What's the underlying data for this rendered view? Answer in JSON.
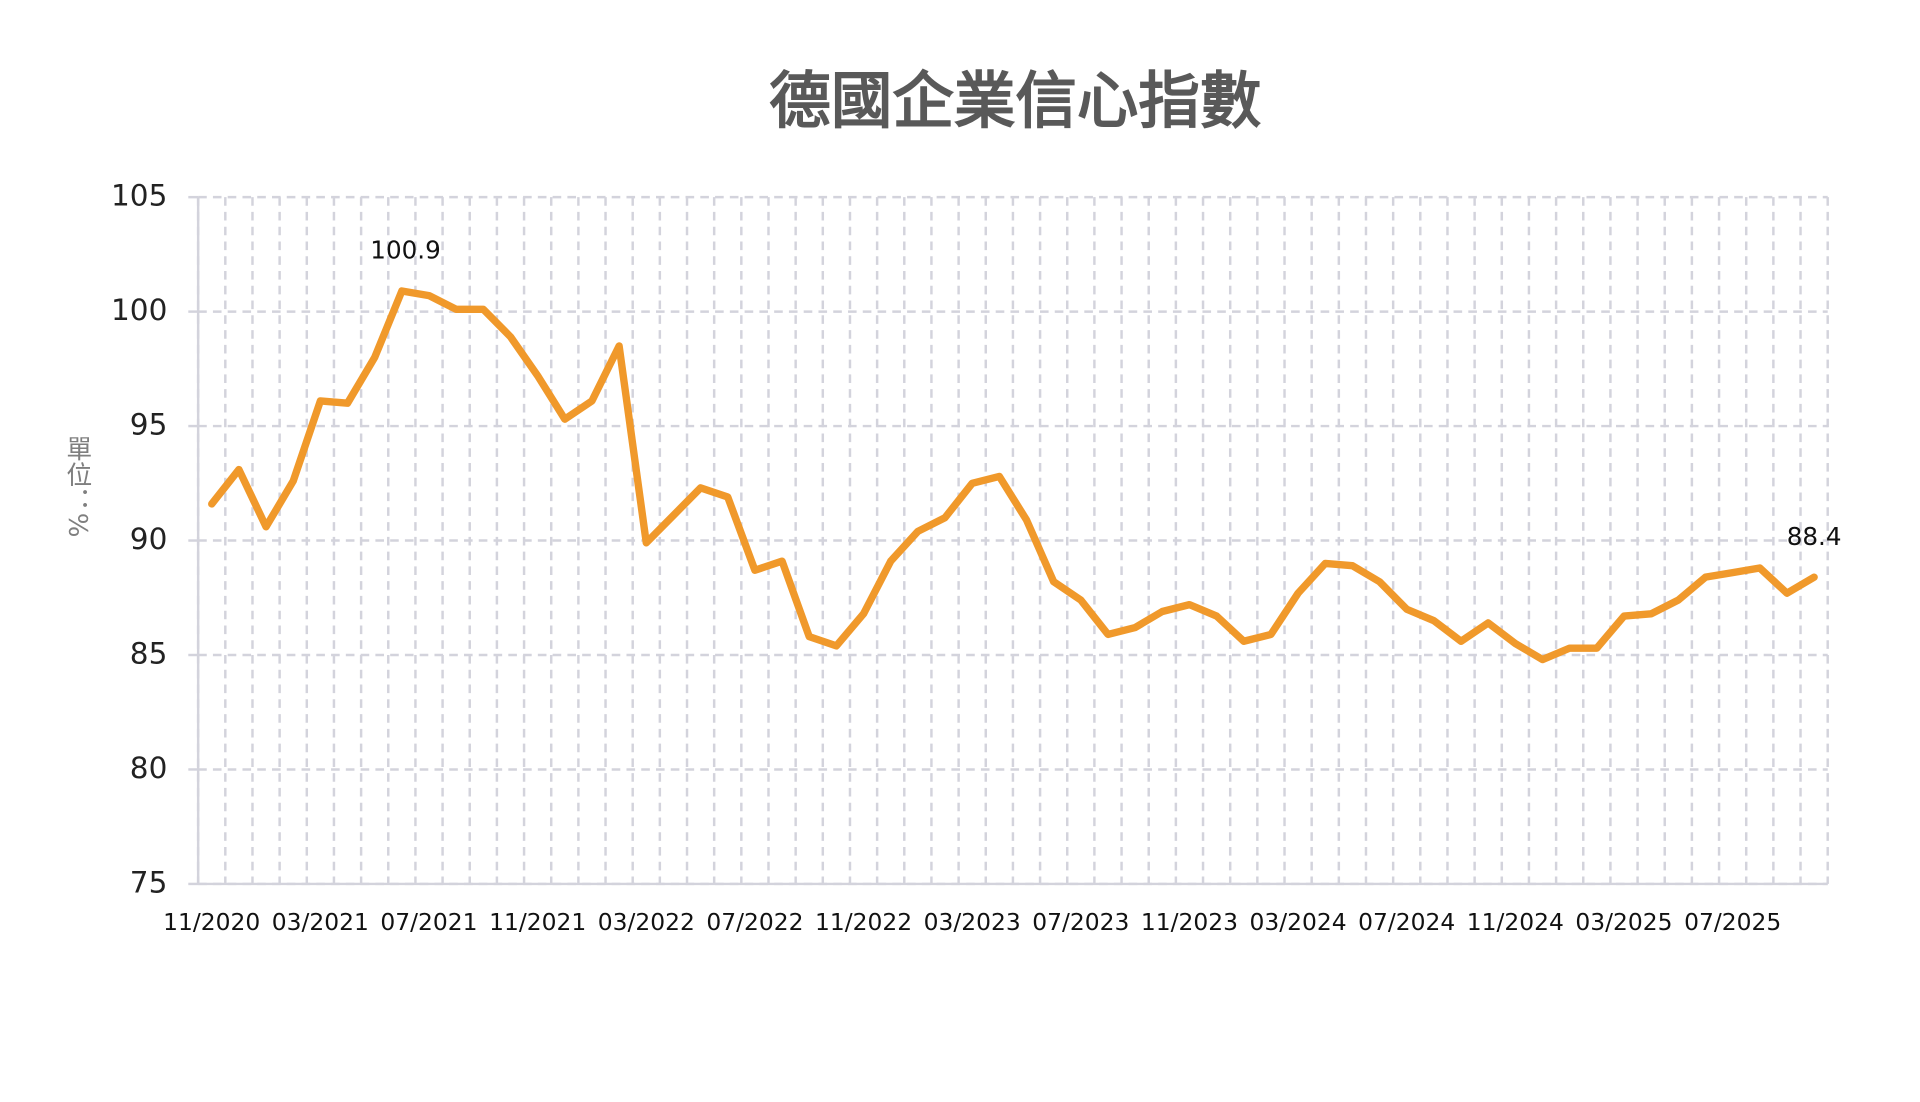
{
  "chart_data": {
    "type": "line",
    "title": "德國企業信心指數",
    "y_label": "單位：%",
    "categories": [
      "11/2020",
      null,
      null,
      null,
      "03/2021",
      null,
      null,
      null,
      "07/2021",
      null,
      null,
      null,
      "11/2021",
      null,
      null,
      null,
      "03/2022",
      null,
      null,
      null,
      "07/2022",
      null,
      null,
      null,
      "11/2022",
      null,
      null,
      null,
      "03/2023",
      null,
      null,
      null,
      "07/2023",
      null,
      null,
      null,
      "11/2023",
      null,
      null,
      null,
      "03/2024",
      null,
      null,
      null,
      "07/2024",
      null,
      null,
      null,
      "11/2024",
      null,
      null,
      null,
      "03/2025",
      null,
      null,
      null,
      "07/2025",
      null,
      null,
      null
    ],
    "series": [
      {
        "name": "德國企業信心指數",
        "color": "#f0992b",
        "values": [
          91.6,
          93.1,
          90.6,
          92.6,
          96.1,
          96.0,
          98.0,
          100.9,
          100.7,
          100.1,
          100.1,
          98.9,
          97.2,
          95.3,
          96.1,
          98.5,
          89.9,
          91.1,
          92.3,
          91.9,
          88.7,
          89.1,
          85.8,
          85.4,
          86.8,
          89.1,
          90.4,
          91.0,
          92.5,
          92.8,
          90.9,
          88.2,
          87.4,
          85.9,
          86.2,
          86.9,
          87.2,
          86.7,
          85.6,
          85.9,
          87.7,
          89.0,
          88.9,
          88.2,
          87.0,
          86.5,
          85.6,
          86.4,
          85.5,
          84.8,
          85.3,
          85.3,
          86.7,
          86.8,
          87.4,
          88.4,
          88.6,
          88.8,
          87.7,
          88.4
        ],
        "value_labels": [
          null,
          null,
          null,
          null,
          null,
          null,
          null,
          "100.9",
          null,
          null,
          null,
          null,
          null,
          null,
          null,
          null,
          null,
          null,
          null,
          null,
          null,
          null,
          null,
          null,
          null,
          null,
          null,
          null,
          null,
          null,
          null,
          null,
          null,
          null,
          null,
          null,
          null,
          null,
          null,
          null,
          null,
          null,
          null,
          null,
          null,
          null,
          null,
          null,
          null,
          null,
          null,
          null,
          null,
          null,
          null,
          null,
          null,
          null,
          null,
          "88.4"
        ]
      }
    ],
    "ylim": [
      75,
      105
    ],
    "yticks": [
      75,
      80,
      85,
      90,
      95,
      100,
      105
    ],
    "grid": true
  }
}
